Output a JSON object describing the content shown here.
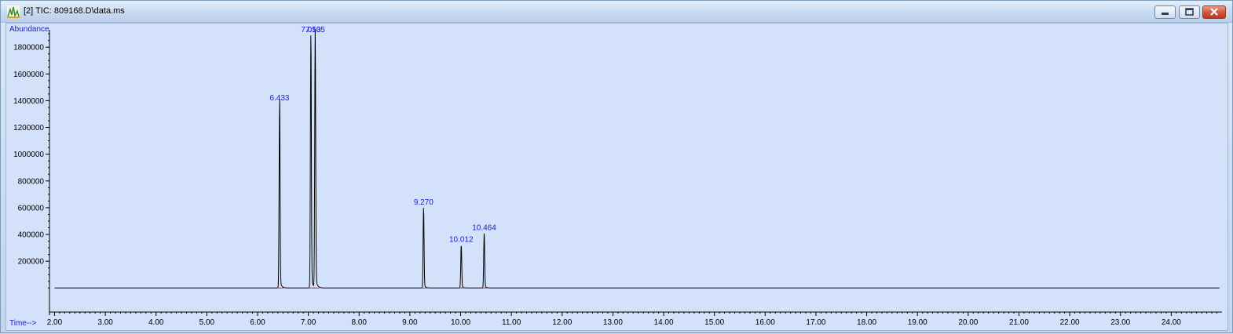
{
  "window": {
    "title": "[2] TIC: 809168.D\\data.ms",
    "controls": [
      "minimize",
      "restore",
      "close"
    ]
  },
  "chart_data": {
    "type": "line",
    "title": "",
    "ylabel": "Abundance",
    "xlabel": "Time-->",
    "xlim": [
      1.9,
      25.0
    ],
    "ylim": [
      -180000,
      1930000
    ],
    "x_ticks": [
      2,
      3,
      4,
      5,
      6,
      7,
      8,
      9,
      10,
      11,
      12,
      13,
      14,
      15,
      16,
      17,
      18,
      19,
      20,
      21,
      22,
      23,
      24
    ],
    "x_tick_labels": [
      "2.00",
      "3.00",
      "4.00",
      "5.00",
      "6.00",
      "7.00",
      "8.00",
      "9.00",
      "10.00",
      "11.00",
      "12.00",
      "13.00",
      "14.00",
      "15.00",
      "16.00",
      "17.00",
      "18.00",
      "19.00",
      "20.00",
      "21.00",
      "22.00",
      "23.00",
      "24.00"
    ],
    "y_ticks": [
      200000,
      400000,
      600000,
      800000,
      1000000,
      1200000,
      1400000,
      1600000,
      1800000
    ],
    "y_tick_labels": [
      "200000",
      "400000",
      "600000",
      "800000",
      "1000000",
      "1200000",
      "1400000",
      "1600000",
      "1800000"
    ],
    "peaks": [
      {
        "rt": 6.433,
        "label": "6.433",
        "height": 1380000
      },
      {
        "rt": 7.05,
        "label": "7.050",
        "height": 1900000
      },
      {
        "rt": 7.135,
        "label": "7.135",
        "height": 1900000
      },
      {
        "rt": 9.27,
        "label": "9.270",
        "height": 600000
      },
      {
        "rt": 10.012,
        "label": "10.012",
        "height": 320000
      },
      {
        "rt": 10.464,
        "label": "10.464",
        "height": 410000
      }
    ],
    "baseline": 0,
    "grid": false,
    "colors": {
      "background": "#d3e2fa",
      "trace": "#000000",
      "peak_label": "#1a1ad6",
      "axis_label": "#1a1ad6",
      "integration_mark": "#cc2222"
    }
  }
}
